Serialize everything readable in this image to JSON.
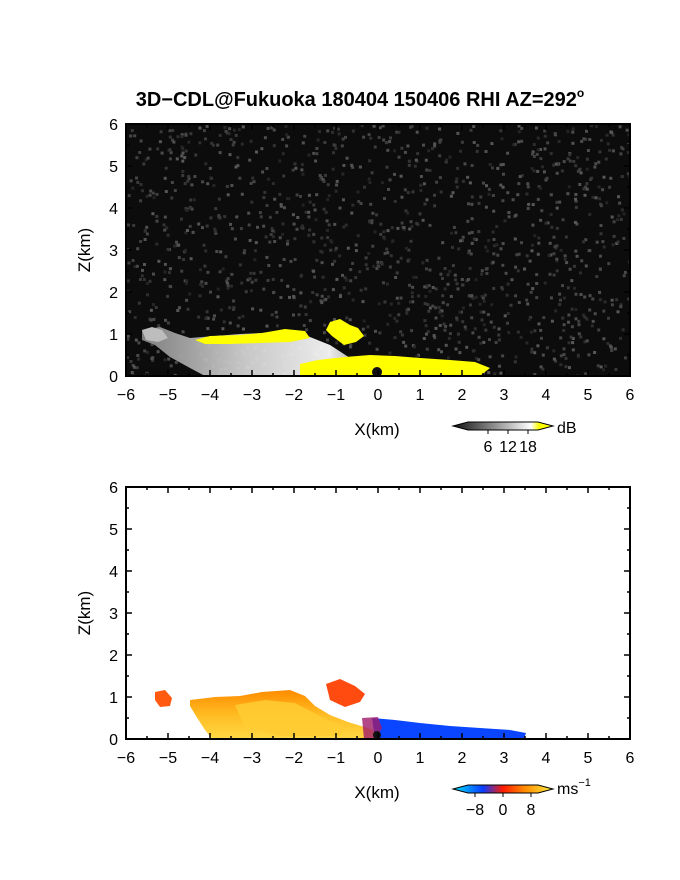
{
  "figure": {
    "title": "3D−CDL@Fukuoka 180404 150406 RHI AZ=292",
    "title_superscript": "o"
  },
  "chart_data": [
    {
      "type": "heatmap",
      "variable": "reflectivity (SNR)",
      "xlabel": "X(km)",
      "ylabel": "Z(km)",
      "xlim": [
        -6,
        6
      ],
      "ylim": [
        0,
        6
      ],
      "xticks": [
        "−6",
        "−5",
        "−4",
        "−3",
        "−2",
        "−1",
        "0",
        "1",
        "2",
        "3",
        "4",
        "5",
        "6"
      ],
      "yticks": [
        "0",
        "1",
        "2",
        "3",
        "4",
        "5",
        "6"
      ],
      "background": "#0c0c0c",
      "colorbar": {
        "unit": "dB",
        "tick_labels": [
          "6",
          "12",
          "18"
        ],
        "ticks": [
          6,
          12,
          18
        ],
        "range": [
          0,
          21
        ],
        "colors": [
          "#101010",
          "#ffffff",
          "#ffff00"
        ]
      },
      "echo_regions": [
        {
          "name": "low-level echo west",
          "x": [
            -5.6,
            -3.6
          ],
          "z": [
            0.0,
            1.1
          ],
          "level": "strong (grey/white)"
        },
        {
          "name": "echo top band",
          "x": [
            -4.3,
            -1.6
          ],
          "z": [
            0.8,
            1.05
          ],
          "level": "saturated (yellow)"
        },
        {
          "name": "elevated cell",
          "x": [
            -1.2,
            -0.3
          ],
          "z": [
            0.9,
            1.35
          ],
          "level": "saturated (yellow)"
        },
        {
          "name": "near-ground return",
          "x": [
            -1.8,
            2.6
          ],
          "z": [
            0.0,
            0.45
          ],
          "level": "saturated (yellow)"
        }
      ]
    },
    {
      "type": "heatmap",
      "variable": "Doppler velocity",
      "xlabel": "X(km)",
      "ylabel": "Z(km)",
      "xlim": [
        -6,
        6
      ],
      "ylim": [
        0,
        6
      ],
      "xticks": [
        "−6",
        "−5",
        "−4",
        "−3",
        "−2",
        "−1",
        "0",
        "1",
        "2",
        "3",
        "4",
        "5",
        "6"
      ],
      "yticks": [
        "0",
        "1",
        "2",
        "3",
        "4",
        "5",
        "6"
      ],
      "background": "#ffffff",
      "colorbar": {
        "unit": "ms",
        "unit_superscript": "−1",
        "tick_labels": [
          "−8",
          "0",
          "8"
        ],
        "ticks": [
          -8,
          0,
          8
        ],
        "range": [
          -10,
          10
        ],
        "colors": [
          "#00e5ff",
          "#0a3cff",
          "#ff1a00",
          "#ff8c00",
          "#ffee44"
        ]
      },
      "echo_regions": [
        {
          "name": "isolated patch",
          "x": [
            -5.3,
            -5.0
          ],
          "z": [
            0.75,
            1.1
          ],
          "velocity_ms": 5
        },
        {
          "name": "receding flow west",
          "x": [
            -4.3,
            -0.1
          ],
          "z": [
            0.0,
            1.05
          ],
          "velocity_ms": 7
        },
        {
          "name": "elevated cell",
          "x": [
            -1.2,
            -0.3
          ],
          "z": [
            0.9,
            1.4
          ],
          "velocity_ms": 4
        },
        {
          "name": "approaching flow east",
          "x": [
            0.0,
            3.6
          ],
          "z": [
            0.0,
            0.45
          ],
          "velocity_ms": -6
        }
      ]
    }
  ]
}
